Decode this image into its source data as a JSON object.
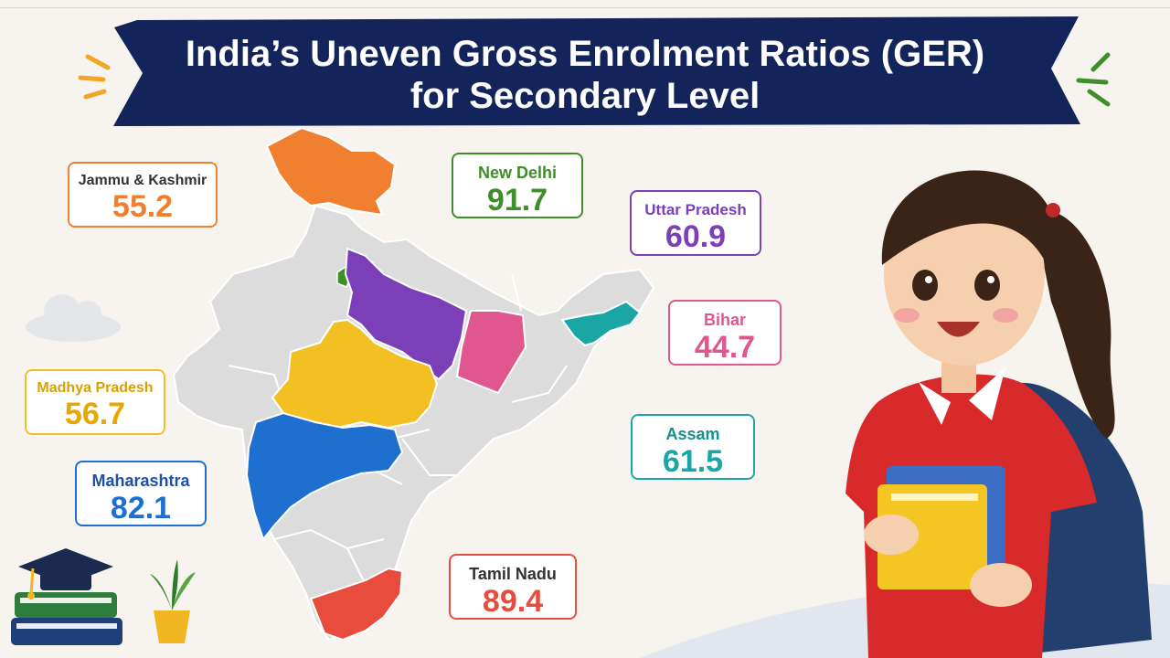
{
  "title": {
    "line1": "India’s Uneven Gross Enrolment Ratios (GER)",
    "line2": "for Secondary Level"
  },
  "states": [
    {
      "name": "Jammu & Kashmir",
      "value": "55.2",
      "color": "#f07f30"
    },
    {
      "name": "New Delhi",
      "value": "91.7",
      "color": "#3e8e2a"
    },
    {
      "name": "Uttar Pradesh",
      "value": "60.9",
      "color": "#7b3fb8"
    },
    {
      "name": "Bihar",
      "value": "44.7",
      "color": "#e0578f"
    },
    {
      "name": "Madhya Pradesh",
      "value": "56.7",
      "color": "#f2c023"
    },
    {
      "name": "Assam",
      "value": "61.5",
      "color": "#1ba6a6"
    },
    {
      "name": "Maharashtra",
      "value": "82.1",
      "color": "#1f6fd1"
    },
    {
      "name": "Tamil Nadu",
      "value": "89.4",
      "color": "#e84c3d"
    }
  ],
  "colors": {
    "banner": "#13245a",
    "map_base": "#dcdcdc",
    "accent_orange": "#f2a623",
    "accent_green": "#3e8e2a"
  },
  "icons": [
    "graduation-cap-icon",
    "books-icon",
    "plant-icon",
    "cloud-icon",
    "student-girl-illustration"
  ]
}
